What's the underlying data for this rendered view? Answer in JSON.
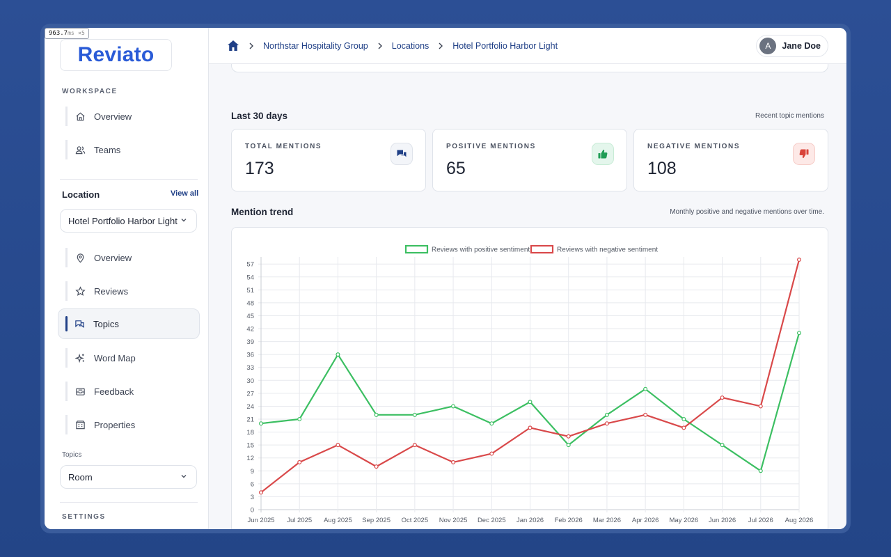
{
  "debug_badge": {
    "value": "963.7",
    "unit": "ms",
    "multiplier": "×5"
  },
  "brand": {
    "name": "Reviato",
    "color": "#2a5bd7"
  },
  "sidebar": {
    "workspace_label": "WORKSPACE",
    "workspace_items": [
      {
        "label": "Overview",
        "icon": "home-icon"
      },
      {
        "label": "Teams",
        "icon": "users-icon"
      }
    ],
    "location_heading": "Location",
    "view_all": "View all",
    "location_select": "Hotel Portfolio Harbor Light",
    "location_items": [
      {
        "label": "Overview",
        "icon": "map-pin-icon"
      },
      {
        "label": "Reviews",
        "icon": "star-icon"
      },
      {
        "label": "Topics",
        "icon": "chat-bubbles-icon",
        "active": true
      },
      {
        "label": "Word Map",
        "icon": "sparkles-icon"
      },
      {
        "label": "Feedback",
        "icon": "inbox-icon"
      },
      {
        "label": "Properties",
        "icon": "building-icon"
      }
    ],
    "topics_label": "Topics",
    "topics_select": "Room",
    "settings_label": "SETTINGS"
  },
  "header": {
    "breadcrumbs": [
      "Northstar Hospitality Group",
      "Locations",
      "Hotel Portfolio Harbor Light"
    ],
    "user": {
      "initial": "A",
      "name": "Jane Doe"
    }
  },
  "main": {
    "period_title": "Last 30 days",
    "period_note": "Recent topic mentions",
    "stats": [
      {
        "label": "TOTAL MENTIONS",
        "value": "173",
        "icon": "chat-icon",
        "icon_bg": "#f3f5f9",
        "icon_color": "#1f3f86"
      },
      {
        "label": "POSITIVE MENTIONS",
        "value": "65",
        "icon": "thumbs-up-icon",
        "icon_bg": "#e4f6ec",
        "icon_color": "#1f9d55"
      },
      {
        "label": "NEGATIVE MENTIONS",
        "value": "108",
        "icon": "thumbs-down-icon",
        "icon_bg": "#fde9e7",
        "icon_color": "#d9443a"
      }
    ],
    "trend_title": "Mention trend",
    "trend_note": "Monthly positive and negative mentions over time."
  },
  "chart_data": {
    "type": "line",
    "x": [
      "Jun 2025",
      "Jul 2025",
      "Aug 2025",
      "Sep 2025",
      "Oct 2025",
      "Nov 2025",
      "Dec 2025",
      "Jan 2026",
      "Feb 2026",
      "Mar 2026",
      "Apr 2026",
      "May 2026",
      "Jun 2026",
      "Jul 2026",
      "Aug 2026"
    ],
    "series": [
      {
        "name": "Reviews with positive sentiment",
        "color": "#3cbf62",
        "values": [
          20,
          21,
          36,
          22,
          22,
          24,
          20,
          25,
          15,
          22,
          28,
          21,
          15,
          9,
          41
        ]
      },
      {
        "name": "Reviews with negative sentiment",
        "color": "#d9494a",
        "values": [
          4,
          11,
          15,
          10,
          15,
          11,
          13,
          19,
          17,
          20,
          22,
          19,
          26,
          24,
          58
        ]
      }
    ],
    "yticks": [
      0,
      3,
      6,
      9,
      12,
      15,
      18,
      21,
      24,
      27,
      30,
      33,
      36,
      39,
      42,
      45,
      48,
      51,
      54,
      57
    ],
    "ylim": [
      0,
      58
    ],
    "grid": true,
    "legend": "top-center"
  }
}
